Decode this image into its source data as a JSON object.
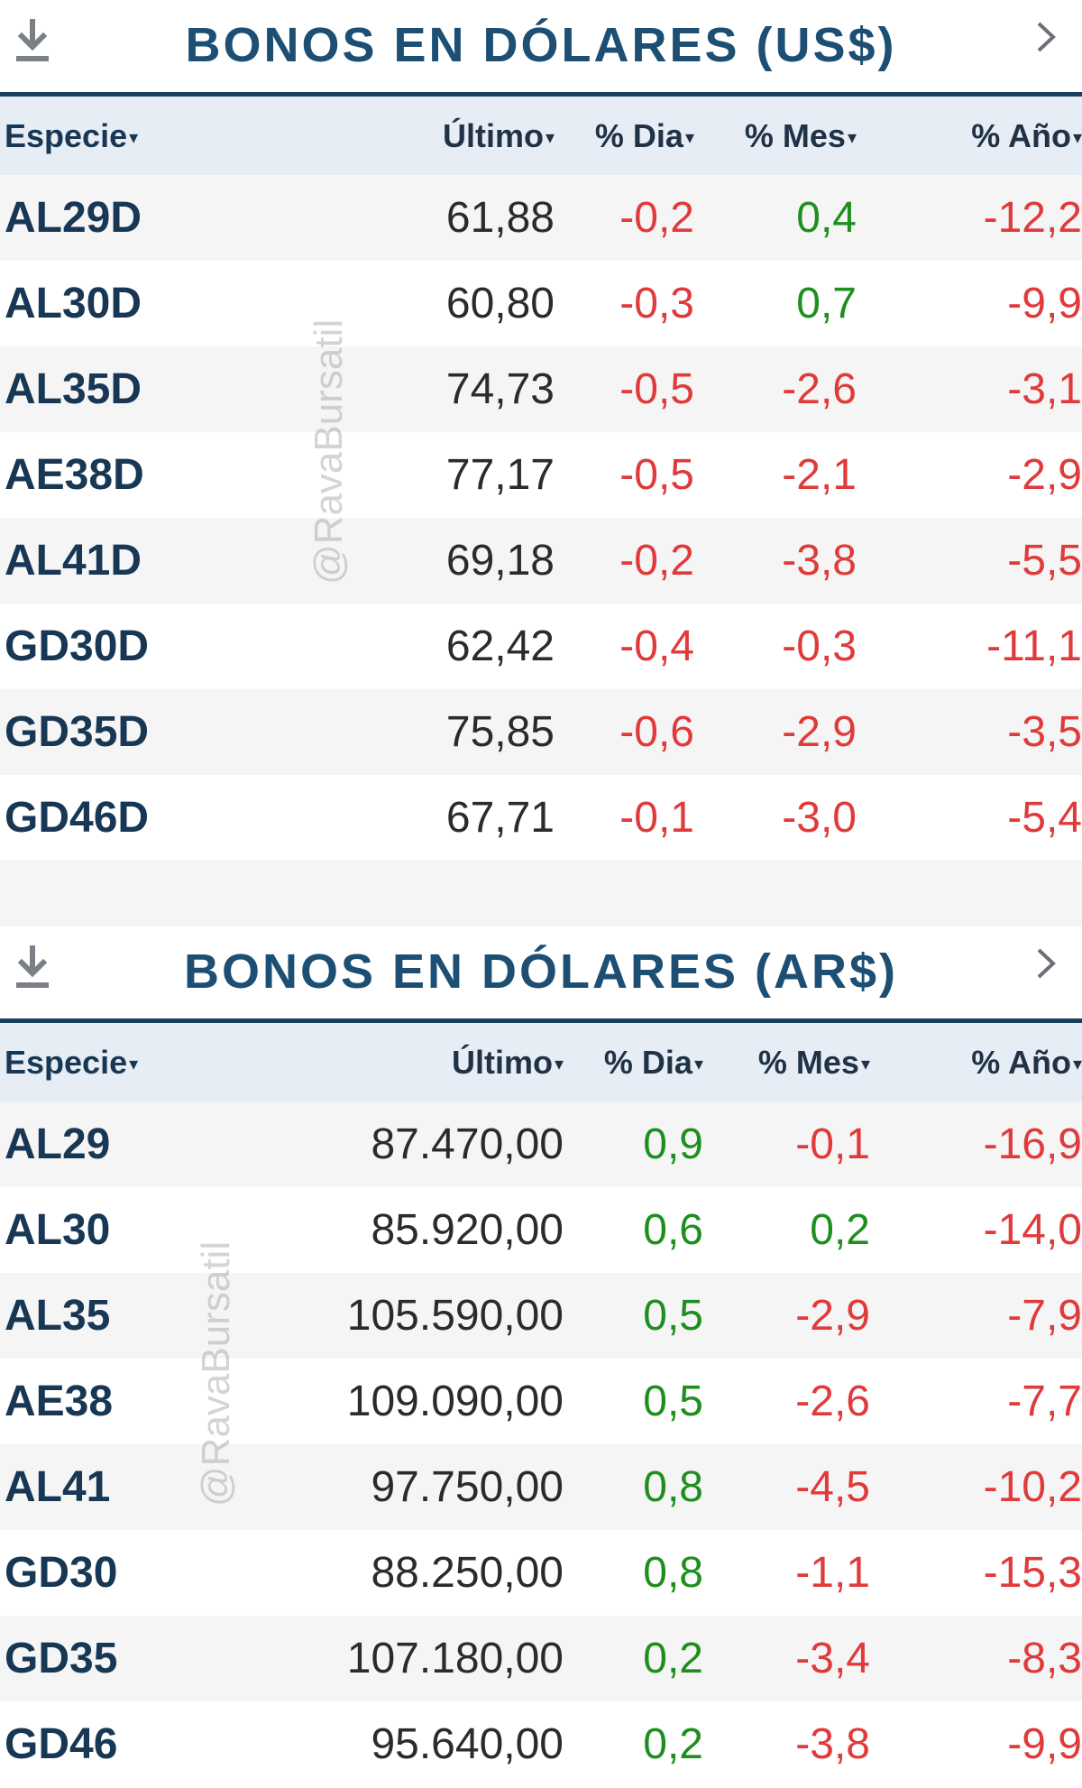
{
  "watermark": "@RavaBursatil",
  "panels": [
    {
      "title": "BONOS EN DÓLARES (US$)",
      "headers": {
        "especie": "Especie",
        "ultimo": "Último",
        "dia": "% Dia",
        "mes": "% Mes",
        "anio": "% Año",
        "sort_glyph": "▾"
      },
      "rows": [
        {
          "especie": "AL29D",
          "ultimo": "61,88",
          "dia": "-0,2",
          "mes": "0,4",
          "anio": "-12,2"
        },
        {
          "especie": "AL30D",
          "ultimo": "60,80",
          "dia": "-0,3",
          "mes": "0,7",
          "anio": "-9,9"
        },
        {
          "especie": "AL35D",
          "ultimo": "74,73",
          "dia": "-0,5",
          "mes": "-2,6",
          "anio": "-3,1"
        },
        {
          "especie": "AE38D",
          "ultimo": "77,17",
          "dia": "-0,5",
          "mes": "-2,1",
          "anio": "-2,9"
        },
        {
          "especie": "AL41D",
          "ultimo": "69,18",
          "dia": "-0,2",
          "mes": "-3,8",
          "anio": "-5,5"
        },
        {
          "especie": "GD30D",
          "ultimo": "62,42",
          "dia": "-0,4",
          "mes": "-0,3",
          "anio": "-11,1"
        },
        {
          "especie": "GD35D",
          "ultimo": "75,85",
          "dia": "-0,6",
          "mes": "-2,9",
          "anio": "-3,5"
        },
        {
          "especie": "GD46D",
          "ultimo": "67,71",
          "dia": "-0,1",
          "mes": "-3,0",
          "anio": "-5,4"
        }
      ]
    },
    {
      "title": "BONOS EN DÓLARES (AR$)",
      "headers": {
        "especie": "Especie",
        "ultimo": "Último",
        "dia": "% Dia",
        "mes": "% Mes",
        "anio": "% Año",
        "sort_glyph": "▾"
      },
      "rows": [
        {
          "especie": "AL29",
          "ultimo": "87.470,00",
          "dia": "0,9",
          "mes": "-0,1",
          "anio": "-16,9"
        },
        {
          "especie": "AL30",
          "ultimo": "85.920,00",
          "dia": "0,6",
          "mes": "0,2",
          "anio": "-14,0"
        },
        {
          "especie": "AL35",
          "ultimo": "105.590,00",
          "dia": "0,5",
          "mes": "-2,9",
          "anio": "-7,9"
        },
        {
          "especie": "AE38",
          "ultimo": "109.090,00",
          "dia": "0,5",
          "mes": "-2,6",
          "anio": "-7,7"
        },
        {
          "especie": "AL41",
          "ultimo": "97.750,00",
          "dia": "0,8",
          "mes": "-4,5",
          "anio": "-10,2"
        },
        {
          "especie": "GD30",
          "ultimo": "88.250,00",
          "dia": "0,8",
          "mes": "-1,1",
          "anio": "-15,3"
        },
        {
          "especie": "GD35",
          "ultimo": "107.180,00",
          "dia": "0,2",
          "mes": "-3,4",
          "anio": "-8,3"
        },
        {
          "especie": "GD46",
          "ultimo": "95.640,00",
          "dia": "0,2",
          "mes": "-3,8",
          "anio": "-9,9"
        }
      ]
    }
  ],
  "colors": {
    "positive": "#1e8f1e",
    "negative": "#e03a3a",
    "title": "#1c4f73",
    "rule": "#17405e"
  }
}
